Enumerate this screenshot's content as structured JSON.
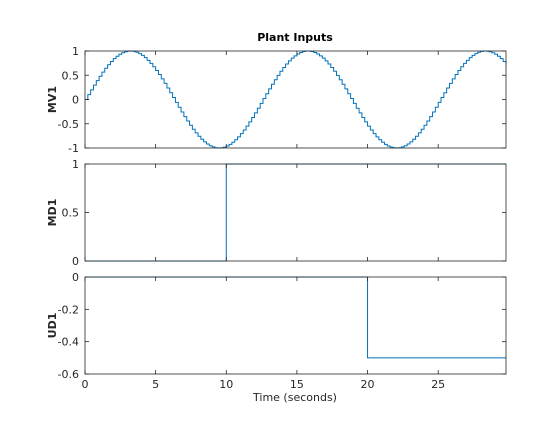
{
  "figure_title": "Plant Inputs",
  "xlabel": "Time (seconds)",
  "colors": {
    "line": "#0072bd",
    "axes": "#262626",
    "background": "#ffffff"
  },
  "chart_data": [
    {
      "type": "line",
      "step": true,
      "ylabel": "MV1",
      "xlim": [
        0,
        29.8
      ],
      "ylim": [
        -1,
        1
      ],
      "xticks": [
        "0",
        "5",
        "10",
        "15",
        "20",
        "25"
      ],
      "yticks": [
        "-1",
        "-0.5",
        "0",
        "0.5",
        "1"
      ],
      "series": [
        {
          "function": "sin",
          "sample_time": 0.2,
          "amplitude": 1,
          "period": 12.56,
          "t_start": 0,
          "t_end": 29.8
        }
      ]
    },
    {
      "type": "line",
      "step": true,
      "ylabel": "MD1",
      "xlim": [
        0,
        29.8
      ],
      "ylim": [
        0,
        1
      ],
      "xticks": [
        "0",
        "5",
        "10",
        "15",
        "20",
        "25"
      ],
      "yticks": [
        "0",
        "0.5",
        "1"
      ],
      "series": [
        {
          "x": [
            0,
            10,
            10,
            29.8
          ],
          "y": [
            0,
            0,
            1,
            1
          ]
        }
      ]
    },
    {
      "type": "line",
      "step": true,
      "ylabel": "UD1",
      "xlim": [
        0,
        29.8
      ],
      "ylim": [
        -0.6,
        0
      ],
      "xticks": [
        "0",
        "5",
        "10",
        "15",
        "20",
        "25"
      ],
      "yticks": [
        "-0.6",
        "-0.4",
        "-0.2",
        "0"
      ],
      "series": [
        {
          "x": [
            0,
            20,
            20,
            29.8
          ],
          "y": [
            0,
            0,
            -0.5,
            -0.5
          ]
        }
      ]
    }
  ]
}
